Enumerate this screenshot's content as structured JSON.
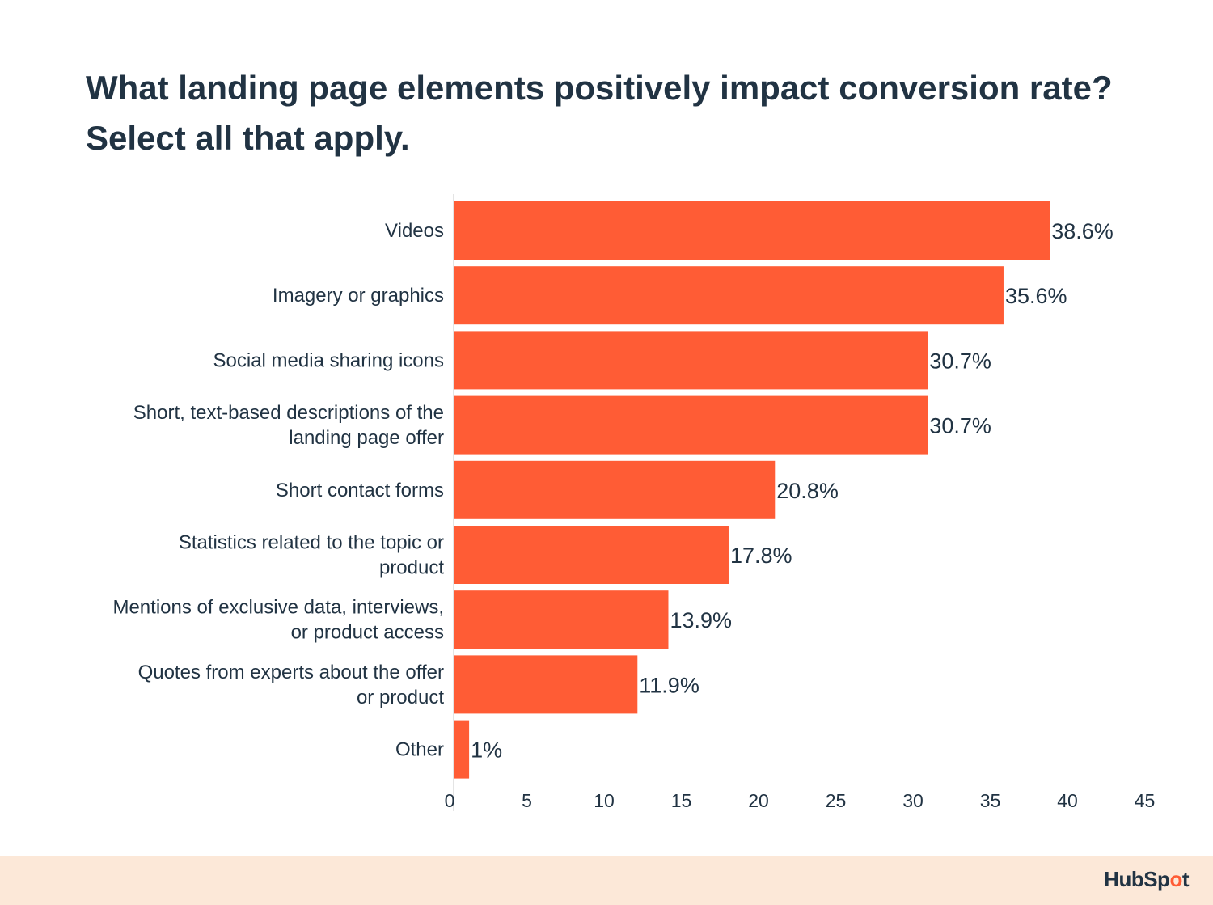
{
  "title": "What landing page elements positively impact conversion rate? Select all that apply.",
  "brand": {
    "logo_text": "HubSpot",
    "accent": "#ff5c35",
    "footer_bg": "#fce8d8"
  },
  "chart_data": {
    "type": "bar",
    "orientation": "horizontal",
    "categories": [
      "Videos",
      "Imagery or graphics",
      "Social media sharing icons",
      "Short, text-based descriptions of the landing page offer",
      "Short contact forms",
      "Statistics related to the topic or product",
      "Mentions of exclusive data, interviews, or product access",
      "Quotes from experts about the offer or product",
      "Other"
    ],
    "category_lines": [
      [
        "Videos"
      ],
      [
        "Imagery or graphics"
      ],
      [
        "Social media sharing icons"
      ],
      [
        "Short, text-based descriptions of the",
        "landing page offer"
      ],
      [
        "Short contact forms"
      ],
      [
        "Statistics related to the topic or",
        "product"
      ],
      [
        "Mentions of exclusive data, interviews,",
        "or product access"
      ],
      [
        "Quotes from experts about the offer",
        "or product"
      ],
      [
        "Other"
      ]
    ],
    "values": [
      38.6,
      35.6,
      30.7,
      30.7,
      20.8,
      17.8,
      13.9,
      11.9,
      1
    ],
    "data_labels": [
      "38.6%",
      "35.6%",
      "30.7%",
      "30.7%",
      "20.8%",
      "17.8%",
      "13.9%",
      "11.9%",
      "1%"
    ],
    "xticks": [
      "0",
      "5",
      "10",
      "15",
      "20",
      "25",
      "30",
      "35",
      "40",
      "45"
    ],
    "xlim": [
      0,
      45
    ],
    "bar_color": "#ff5c35",
    "grid": false
  }
}
